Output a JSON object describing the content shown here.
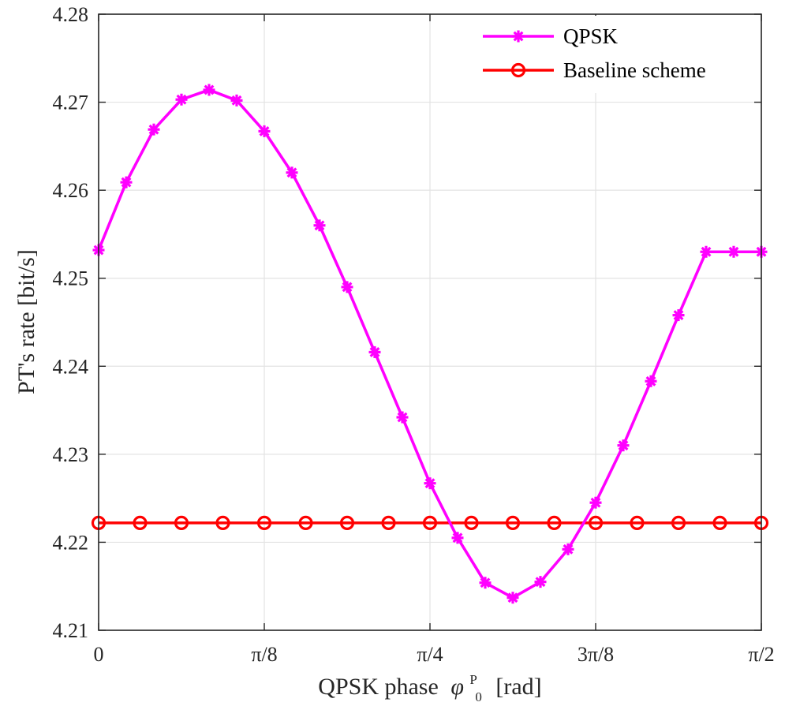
{
  "chart_data": {
    "type": "line",
    "title": "",
    "xlabel": "QPSK phase",
    "xlabel_symbol": "φ",
    "xlabel_sub": "0",
    "xlabel_sup": "P",
    "xlabel_unit": "[rad]",
    "ylabel": "PT's rate [bit/s]",
    "xlim": [
      0,
      1.5708
    ],
    "ylim": [
      4.21,
      4.28
    ],
    "x_ticks": [
      {
        "value": 0,
        "label": "0"
      },
      {
        "value": 0.3927,
        "label": "π/8"
      },
      {
        "value": 0.7854,
        "label": "π/4"
      },
      {
        "value": 1.1781,
        "label": "3π/8"
      },
      {
        "value": 1.5708,
        "label": "π/2"
      }
    ],
    "y_ticks": [
      {
        "value": 4.21,
        "label": "4.21"
      },
      {
        "value": 4.22,
        "label": "4.22"
      },
      {
        "value": 4.23,
        "label": "4.23"
      },
      {
        "value": 4.24,
        "label": "4.24"
      },
      {
        "value": 4.25,
        "label": "4.25"
      },
      {
        "value": 4.26,
        "label": "4.26"
      },
      {
        "value": 4.27,
        "label": "4.27"
      },
      {
        "value": 4.28,
        "label": "4.28"
      }
    ],
    "grid": true,
    "legend_position": "top-right",
    "x": [
      0,
      0.09817,
      0.19635,
      0.29452,
      0.3927,
      0.49087,
      0.58905,
      0.68722,
      0.7854,
      0.88357,
      0.98175,
      1.07992,
      1.1781,
      1.27627,
      1.37445,
      1.47262,
      1.5708
    ],
    "series": [
      {
        "name": "QPSK",
        "color": "#ff00ff",
        "marker": "asterisk",
        "x": [
          0,
          0.06545,
          0.1309,
          0.19635,
          0.2618,
          0.32725,
          0.3927,
          0.45815,
          0.5236,
          0.58905,
          0.6545,
          0.71995,
          0.7854,
          0.85085,
          0.9163,
          0.98175,
          1.0472,
          1.11265,
          1.1781,
          1.24355,
          1.309,
          1.37445,
          1.4399,
          1.50535,
          1.5708
        ],
        "values": [
          4.2532,
          4.2609,
          4.2669,
          4.2703,
          4.2714,
          4.2702,
          4.2667,
          4.262,
          4.256,
          4.249,
          4.2416,
          4.2342,
          4.2267,
          4.2205,
          4.2154,
          4.2137,
          4.2155,
          4.2192,
          4.2245,
          4.231,
          4.2383,
          4.2458,
          4.253,
          4.253,
          4.253
        ]
      },
      {
        "name": "Baseline scheme",
        "color": "#ff0000",
        "marker": "circle",
        "values": [
          4.2222,
          4.2222,
          4.2222,
          4.2222,
          4.2222,
          4.2222,
          4.2222,
          4.2222,
          4.2222,
          4.2222,
          4.2222,
          4.2222,
          4.2222,
          4.2222,
          4.2222,
          4.2222,
          4.2222
        ]
      }
    ]
  }
}
